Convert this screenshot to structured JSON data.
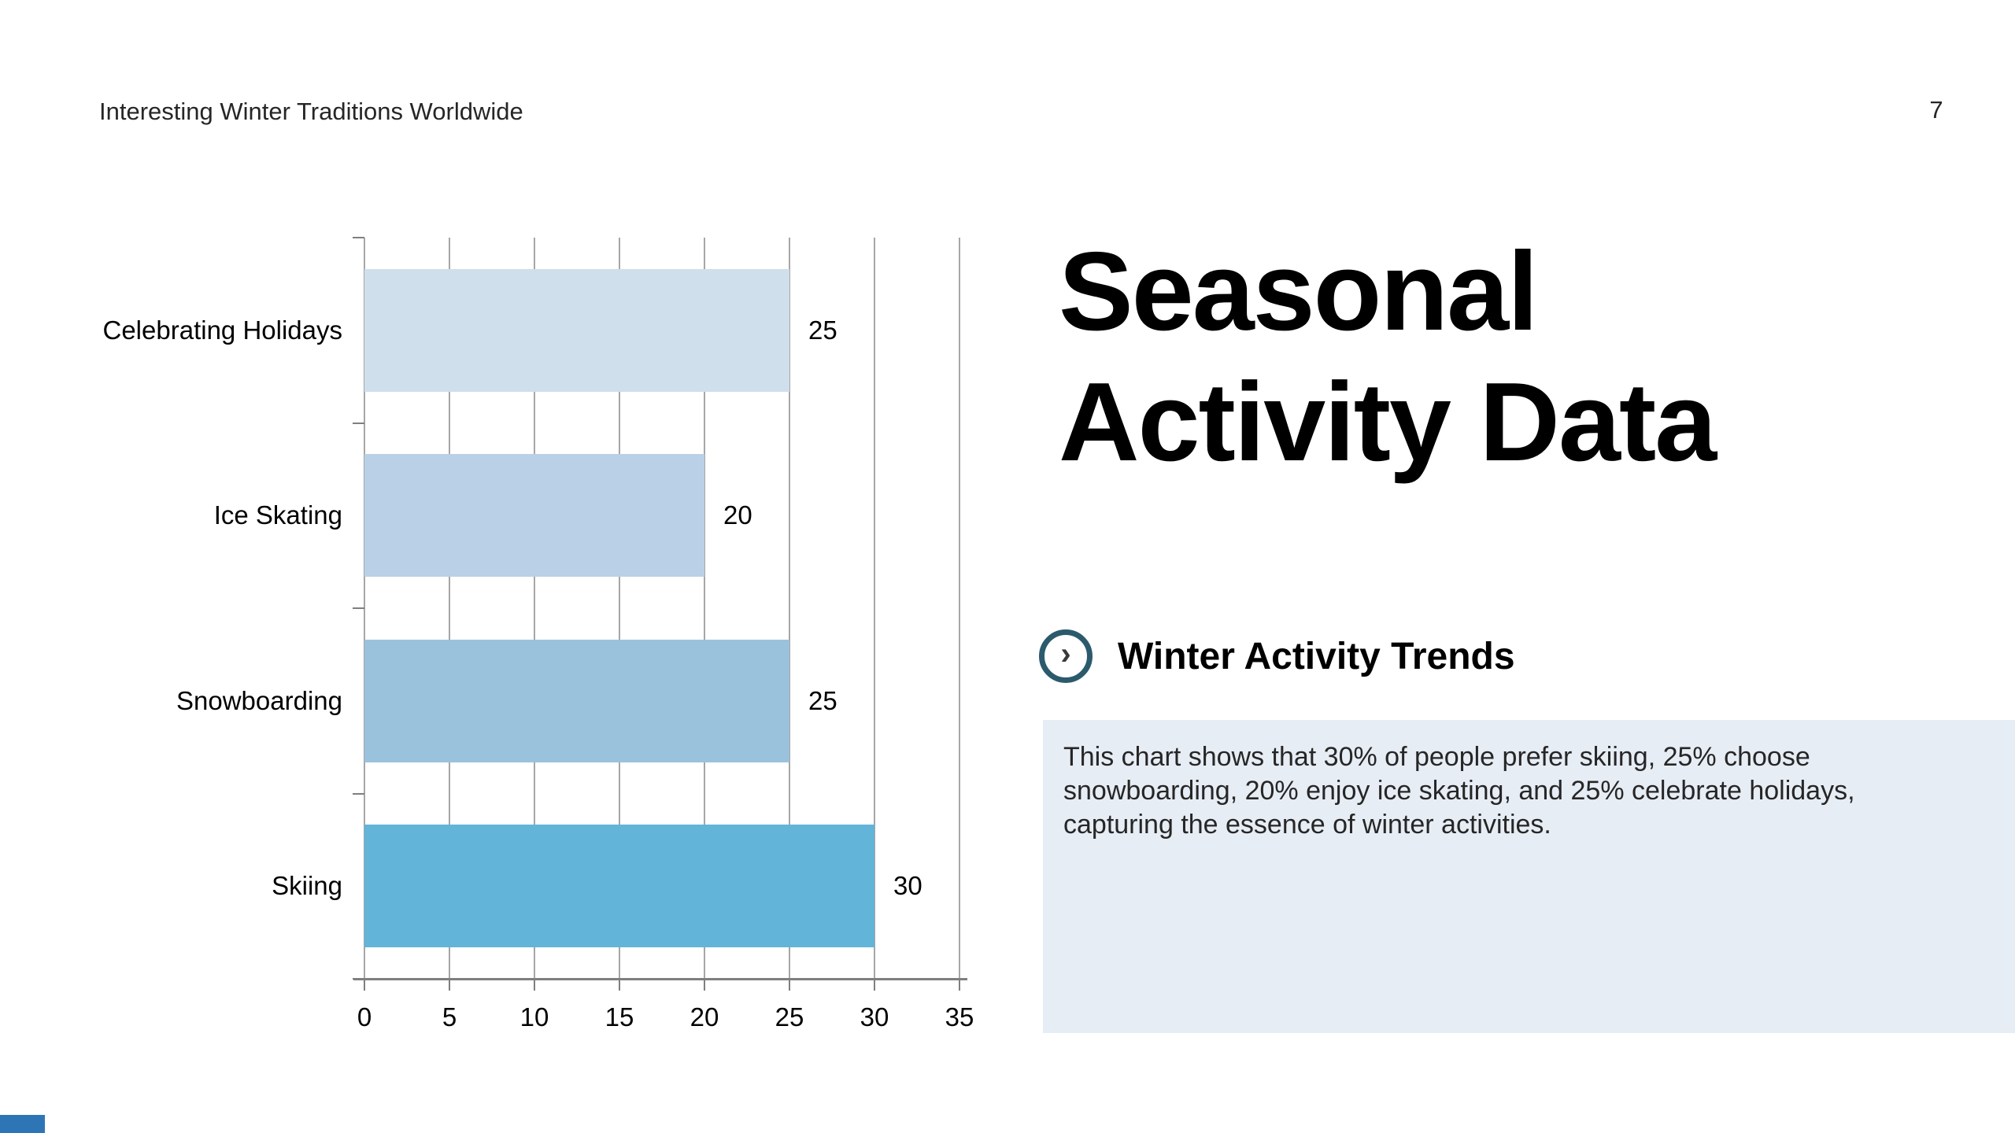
{
  "slide": {
    "header": "Interesting Winter Traditions Worldwide",
    "page_number": "7",
    "title": "Seasonal\nActivity Data",
    "section_heading": "Winter Activity Trends",
    "chevron_glyph": "›",
    "body_text": "This chart shows that 30% of people prefer skiing, 25% choose\nsnowboarding, 20% enjoy ice skating, and 25% celebrate holidays,\ncapturing the essence of winter activities.",
    "accent_color": "#2e75b6",
    "text_box_color": "#e7edf5",
    "icon_circle_color": "#2c5a6d"
  },
  "chart_data": {
    "type": "bar",
    "orientation": "horizontal",
    "categories": [
      "Celebrating Holidays",
      "Ice Skating",
      "Snowboarding",
      "Skiing"
    ],
    "values": [
      25,
      20,
      25,
      30
    ],
    "data_labels": [
      "25",
      "20",
      "25",
      "30"
    ],
    "bar_colors": [
      "#cfdfec",
      "#b9d0e7",
      "#9ac2dc",
      "#62b4d8"
    ],
    "title": "",
    "xlabel": "",
    "ylabel": "",
    "xlim": [
      0,
      35
    ],
    "xticks": [
      0,
      5,
      10,
      15,
      20,
      25,
      30,
      35
    ],
    "grid": true,
    "gridline_color": "#a6a6a6",
    "axis_color": "#7f7f7f",
    "legend": false
  }
}
